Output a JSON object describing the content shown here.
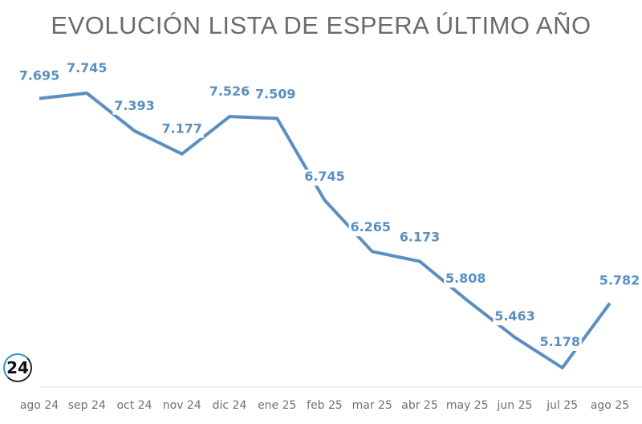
{
  "chart_data": {
    "type": "line",
    "title": "EVOLUCIÓN LISTA DE ESPERA ÚLTIMO AÑO",
    "categories": [
      "ago 24",
      "sep 24",
      "oct 24",
      "nov 24",
      "dic 24",
      "ene 25",
      "feb 25",
      "mar 25",
      "abr 25",
      "may 25",
      "jun 25",
      "jul 25",
      "ago 25"
    ],
    "values": [
      7695,
      7745,
      7393,
      7177,
      7526,
      7509,
      6745,
      6265,
      6173,
      5808,
      5463,
      5178,
      5782
    ],
    "data_labels": [
      "7.695",
      "7.745",
      "7.393",
      "7.177",
      "7.526",
      "7.509",
      "6.745",
      "6.265",
      "6.173",
      "5.808",
      "5.463",
      "5.178",
      "5.782"
    ],
    "xlabel": "",
    "ylabel": "",
    "grid": false,
    "legend": "none",
    "line_color": "#5b8fc0"
  },
  "logo": {
    "text": "24"
  }
}
